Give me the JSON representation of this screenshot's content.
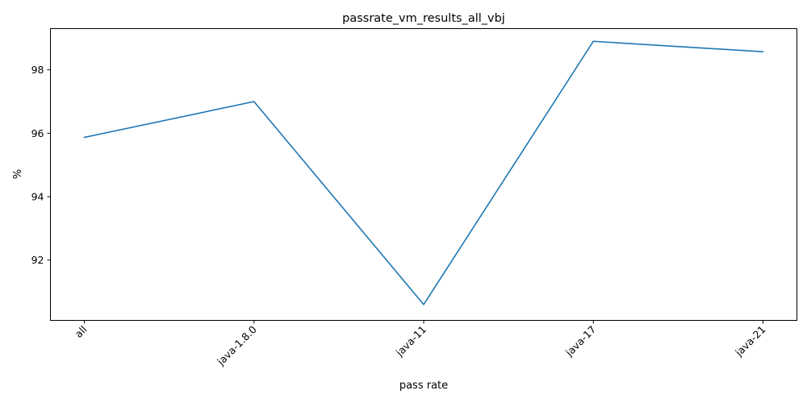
{
  "chart_data": {
    "type": "line",
    "title": "passrate_vm_results_all_vbj",
    "xlabel": "pass rate",
    "ylabel": "%",
    "categories": [
      "all",
      "java-1.8.0",
      "java-11",
      "java-17",
      "java-21"
    ],
    "series": [
      {
        "values": [
          95.87,
          97.0,
          90.6,
          98.9,
          98.57
        ],
        "color": "#1f77b4"
      }
    ],
    "ylim": [
      90.1,
      99.3
    ],
    "yticks": [
      92,
      94,
      96,
      98
    ],
    "ytick_labels": [
      "92",
      "94",
      "96",
      "98"
    ],
    "xtick_rotation": 45,
    "grid": false,
    "legend": "none"
  }
}
